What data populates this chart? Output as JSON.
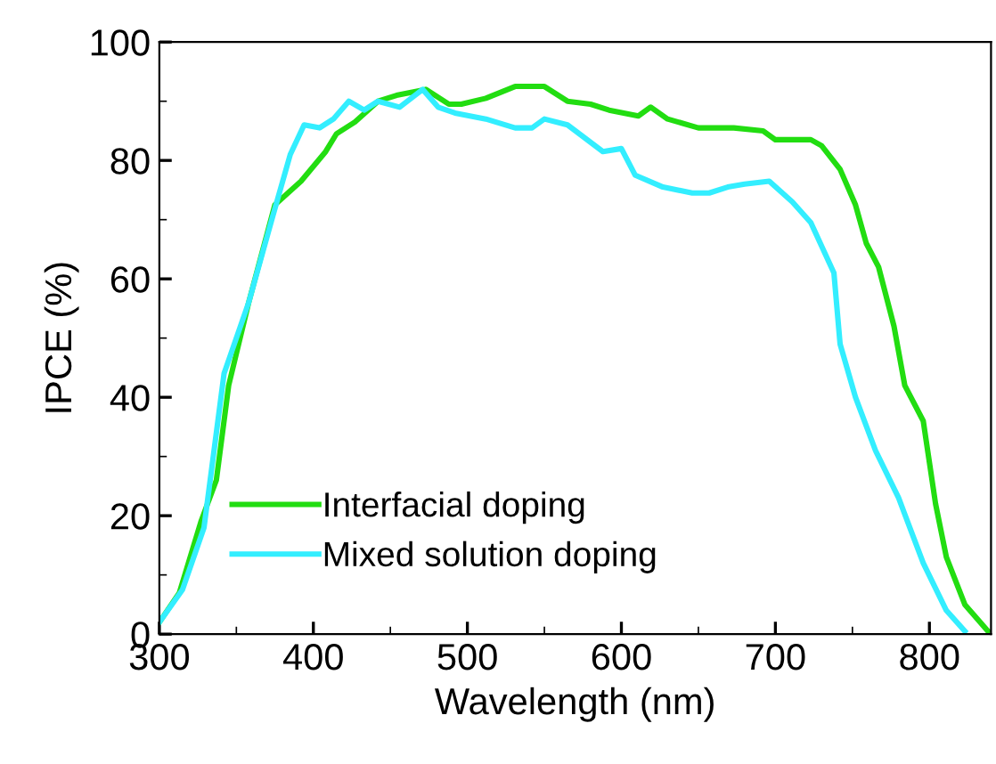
{
  "chart_data": {
    "type": "line",
    "xlabel": "Wavelength (nm)",
    "ylabel": "IPCE (%)",
    "xlim": [
      300,
      840
    ],
    "xticks": [
      300,
      400,
      500,
      600,
      700,
      800
    ],
    "ylim": [
      0,
      100
    ],
    "yticks": [
      0,
      20,
      40,
      60,
      80,
      100
    ],
    "grid": false,
    "legend": "bottom left",
    "marker": "none",
    "line_style": "solid",
    "series": [
      {
        "name": "Interfacial doping",
        "color": "#22dd11",
        "x": [
          300,
          313,
          327,
          337,
          345,
          358,
          375,
          392,
          408,
          415,
          427,
          442,
          454,
          473,
          488,
          496,
          512,
          531,
          550,
          565,
          580,
          592,
          611,
          619,
          630,
          650,
          673,
          692,
          700,
          723,
          730,
          742,
          752,
          759,
          767,
          777,
          784,
          796,
          804,
          811,
          823,
          838
        ],
        "values": [
          2,
          7,
          19,
          26,
          42,
          56,
          72.5,
          76.5,
          81.5,
          84.5,
          86.5,
          90,
          91,
          92,
          89.5,
          89.5,
          90.5,
          92.5,
          92.5,
          90,
          89.5,
          88.5,
          87.5,
          89,
          87,
          85.5,
          85.5,
          85,
          83.5,
          83.5,
          82.5,
          78.5,
          72.5,
          66,
          62,
          52,
          42,
          36,
          22,
          13,
          5,
          0.5
        ]
      },
      {
        "name": "Mixed solution doping",
        "color": "#33eeff",
        "x": [
          300,
          315,
          329,
          342,
          358,
          373,
          385,
          394,
          404,
          413,
          423,
          433,
          442,
          456,
          471,
          481,
          492,
          512,
          531,
          542,
          550,
          565,
          588,
          600,
          609,
          627,
          646,
          657,
          669,
          680,
          696,
          711,
          723,
          738,
          742,
          752,
          765,
          780,
          796,
          811,
          823
        ],
        "values": [
          2,
          7.5,
          18,
          44,
          56,
          70,
          81,
          86,
          85.5,
          87,
          90,
          88.5,
          90,
          89,
          92,
          89,
          88,
          87,
          85.5,
          85.5,
          87,
          86,
          81.5,
          82,
          77.5,
          75.5,
          74.5,
          74.5,
          75.5,
          76,
          76.5,
          73,
          69.5,
          61,
          49,
          40,
          31,
          23,
          12,
          4,
          0.5
        ]
      }
    ]
  }
}
